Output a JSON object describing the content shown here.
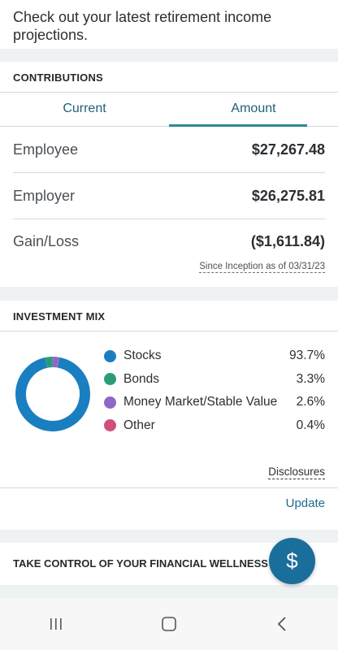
{
  "intro": {
    "text": "Check out your latest retirement income projections."
  },
  "contributions": {
    "title": "CONTRIBUTIONS",
    "tabs": [
      {
        "label": "Current",
        "active": false
      },
      {
        "label": "Amount",
        "active": true
      }
    ],
    "rows": [
      {
        "label": "Employee",
        "value": "$27,267.48"
      },
      {
        "label": "Employer",
        "value": "$26,275.81"
      },
      {
        "label": "Gain/Loss",
        "value": "($1,611.84)"
      }
    ],
    "since": "Since Inception as of 03/31/23"
  },
  "investment_mix": {
    "title": "INVESTMENT MIX",
    "items": [
      {
        "name": "Stocks",
        "percent": "93.7%",
        "value": 93.7,
        "color": "#1a7fc1"
      },
      {
        "name": "Bonds",
        "percent": "3.3%",
        "value": 3.3,
        "color": "#2a9d78"
      },
      {
        "name": "Money Market/Stable Value",
        "percent": "2.6%",
        "value": 2.6,
        "color": "#8e68c8"
      },
      {
        "name": "Other",
        "percent": "0.4%",
        "value": 0.4,
        "color": "#d0507a"
      }
    ],
    "disclosures": "Disclosures",
    "update": "Update"
  },
  "wellness": {
    "title": "TAKE CONTROL OF YOUR FINANCIAL WELLNESS"
  },
  "fab": {
    "icon": "dollar-icon",
    "glyph": "$"
  },
  "navbar": {
    "recent_icon": "recent-apps-icon",
    "home_icon": "home-icon",
    "back_icon": "back-icon"
  }
}
